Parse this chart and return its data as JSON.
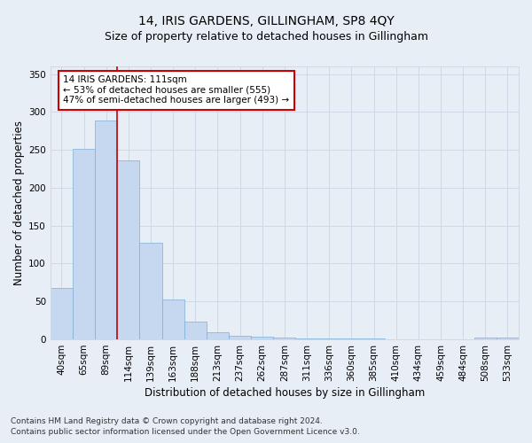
{
  "title": "14, IRIS GARDENS, GILLINGHAM, SP8 4QY",
  "subtitle": "Size of property relative to detached houses in Gillingham",
  "xlabel": "Distribution of detached houses by size in Gillingham",
  "ylabel": "Number of detached properties",
  "footnote1": "Contains HM Land Registry data © Crown copyright and database right 2024.",
  "footnote2": "Contains public sector information licensed under the Open Government Licence v3.0.",
  "annotation_line1": "14 IRIS GARDENS: 111sqm",
  "annotation_line2": "← 53% of detached houses are smaller (555)",
  "annotation_line3": "47% of semi-detached houses are larger (493) →",
  "bar_labels": [
    "40sqm",
    "65sqm",
    "89sqm",
    "114sqm",
    "139sqm",
    "163sqm",
    "188sqm",
    "213sqm",
    "237sqm",
    "262sqm",
    "287sqm",
    "311sqm",
    "336sqm",
    "360sqm",
    "385sqm",
    "410sqm",
    "434sqm",
    "459sqm",
    "484sqm",
    "508sqm",
    "533sqm"
  ],
  "bar_values": [
    68,
    251,
    289,
    236,
    128,
    53,
    24,
    9,
    5,
    4,
    2,
    1,
    1,
    1,
    1,
    0,
    0,
    0,
    0,
    3,
    2
  ],
  "bar_color": "#c5d8f0",
  "bar_edge_color": "#7bafd4",
  "vline_color": "#cc0000",
  "annotation_box_color": "#ffffff",
  "annotation_box_edge": "#cc0000",
  "grid_color": "#d0d8e8",
  "background_color": "#e8eef5",
  "plot_bg_color": "#e8eef5",
  "title_fontsize": 10,
  "subtitle_fontsize": 9,
  "axis_label_fontsize": 8.5,
  "tick_fontsize": 7.5,
  "annotation_fontsize": 7.5,
  "footnote_fontsize": 6.5,
  "ylim": [
    0,
    360
  ],
  "yticks": [
    0,
    50,
    100,
    150,
    200,
    250,
    300,
    350
  ],
  "vline_x": 2.5
}
